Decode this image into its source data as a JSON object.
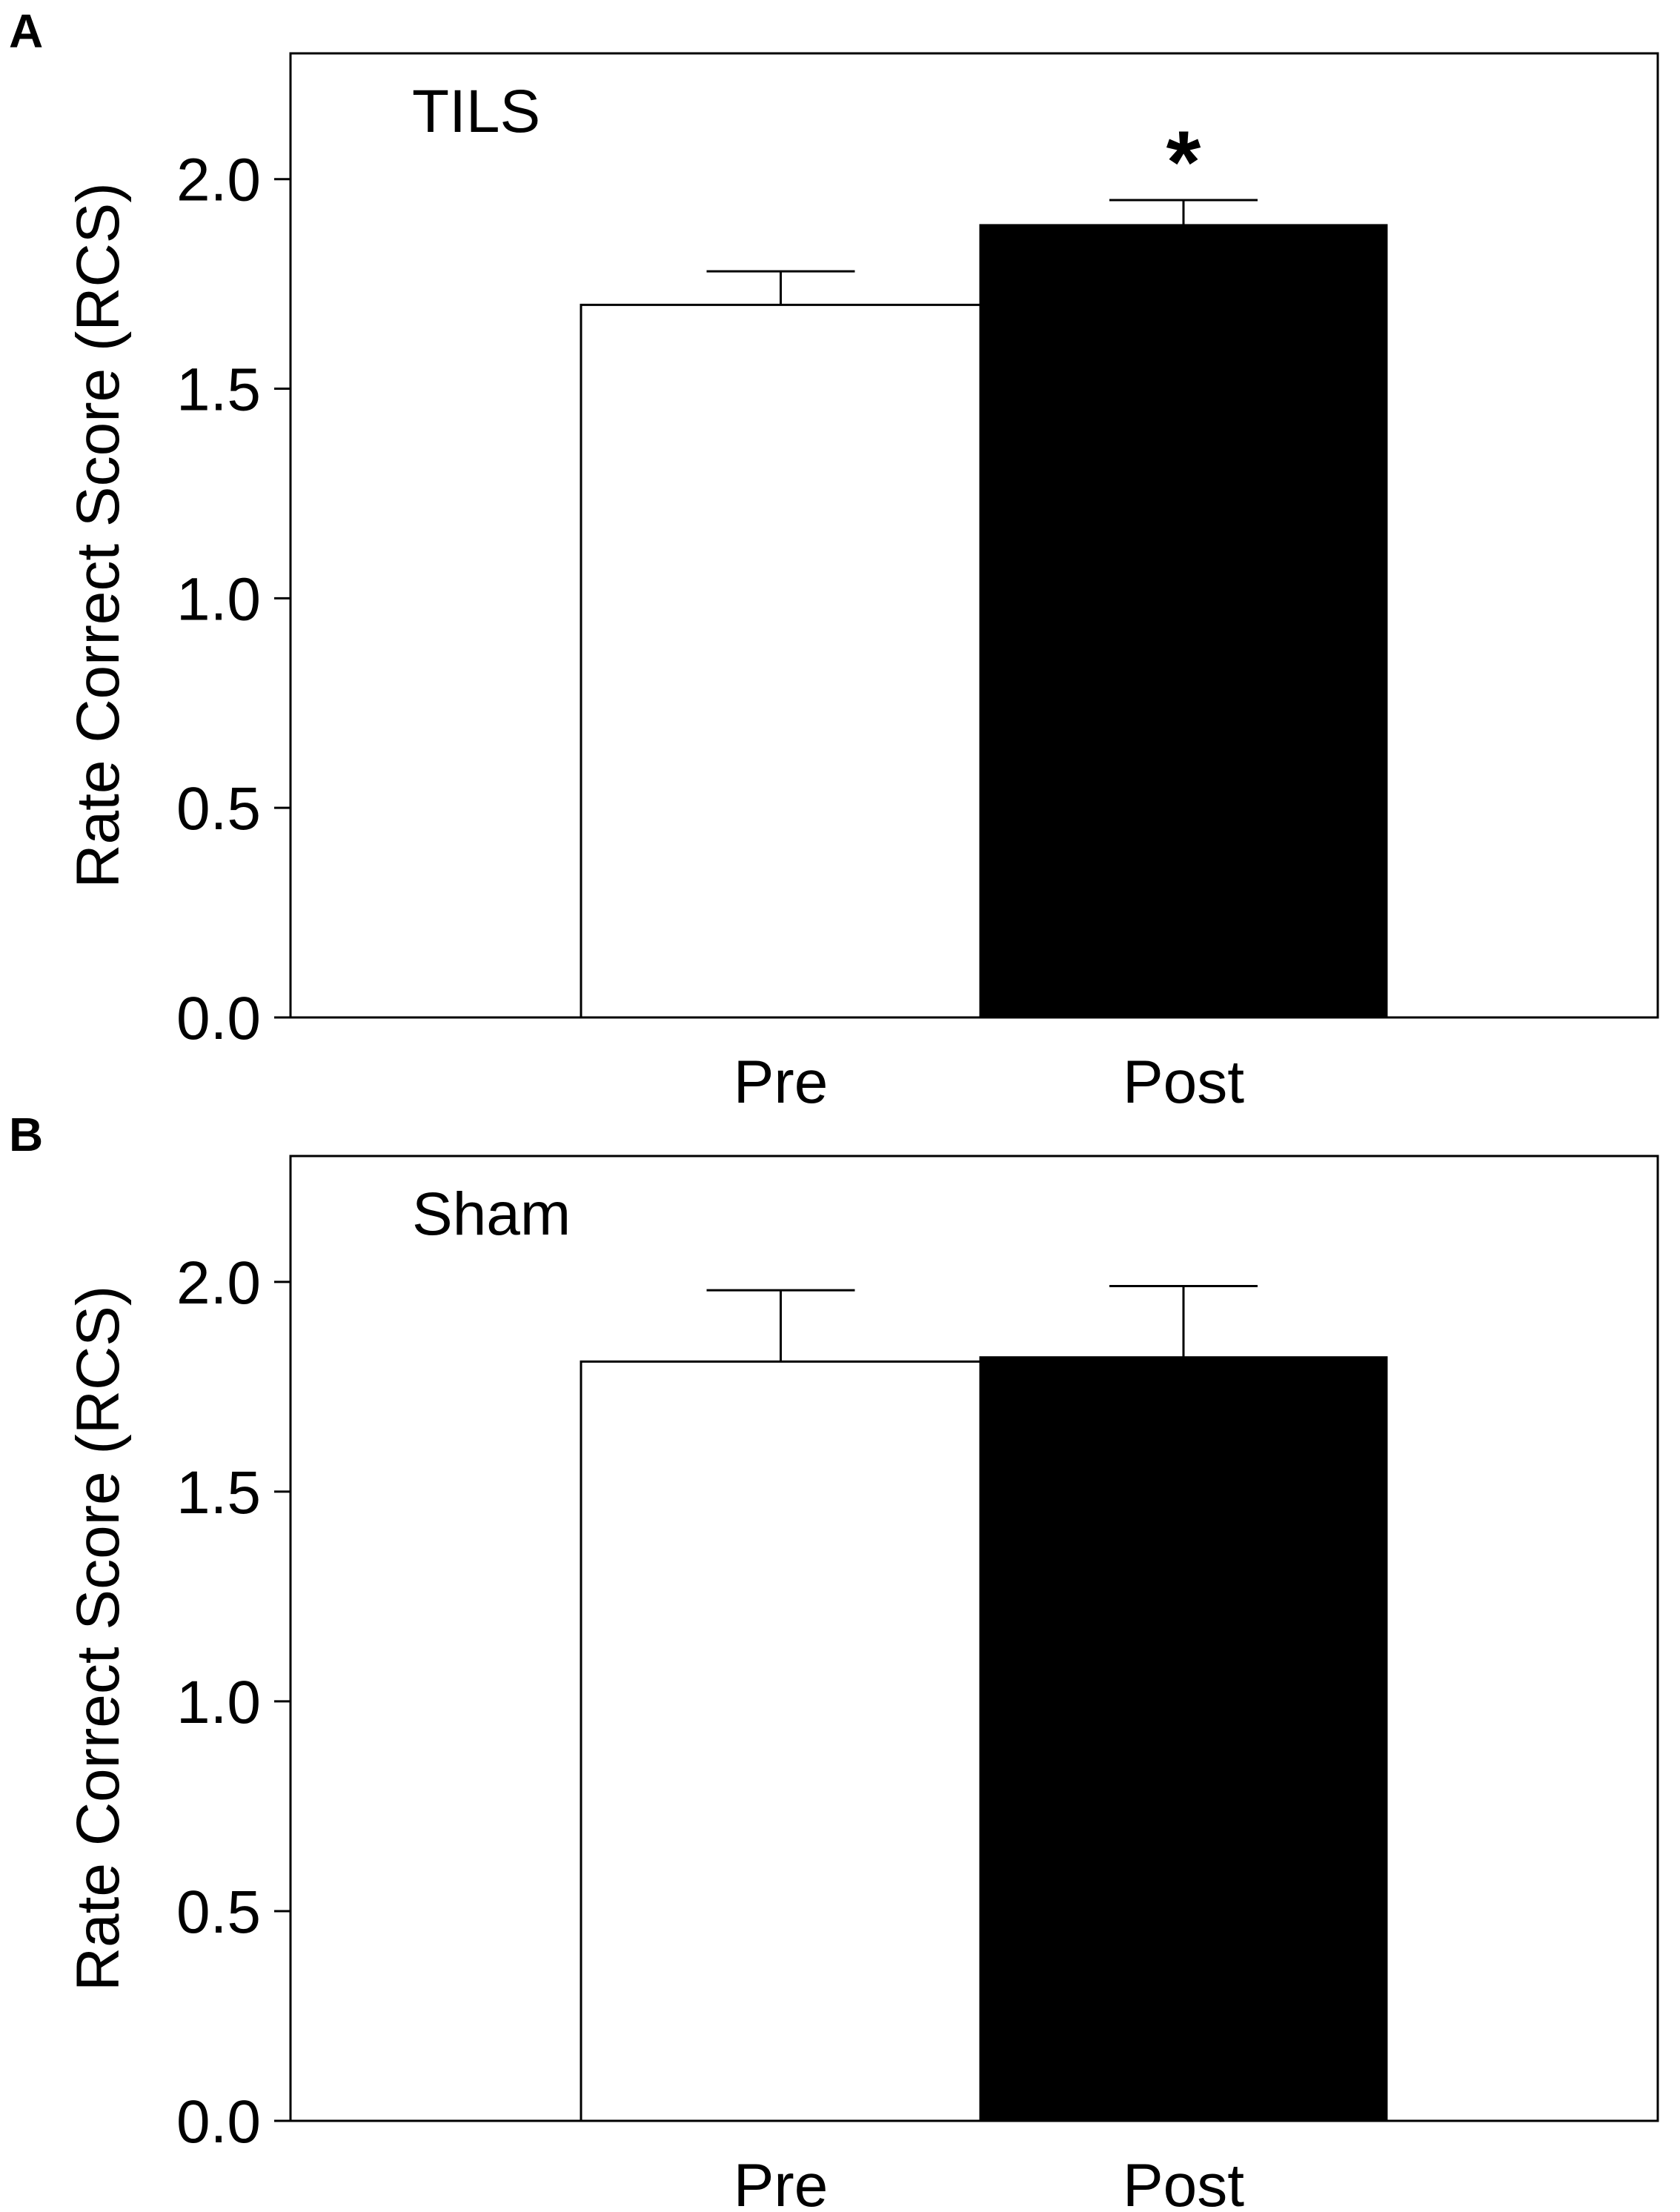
{
  "colors": {
    "pre": "#ffffff",
    "post": "#000000",
    "stroke": "#000000"
  },
  "chart_data": [
    {
      "type": "bar",
      "panel": "A",
      "group_label": "TILS",
      "ylabel": "Rate Correct Score (RCS)",
      "xlabel": "",
      "categories": [
        "Pre",
        "Post"
      ],
      "values": [
        1.7,
        1.89
      ],
      "error": [
        0.08,
        0.06
      ],
      "significance": [
        "",
        "*"
      ],
      "yticks": [
        "0.0",
        "0.5",
        "1.0",
        "1.5",
        "2.0"
      ],
      "ylim": [
        0,
        2.3
      ],
      "grid": false,
      "legend": "none"
    },
    {
      "type": "bar",
      "panel": "B",
      "group_label": "Sham",
      "ylabel": "Rate Correct Score (RCS)",
      "xlabel": "",
      "categories": [
        "Pre",
        "Post"
      ],
      "values": [
        1.81,
        1.82
      ],
      "error": [
        0.17,
        0.17
      ],
      "significance": [
        "",
        ""
      ],
      "yticks": [
        "0.0",
        "0.5",
        "1.0",
        "1.5",
        "2.0"
      ],
      "ylim": [
        0,
        2.3
      ],
      "grid": false,
      "legend": "none"
    }
  ]
}
